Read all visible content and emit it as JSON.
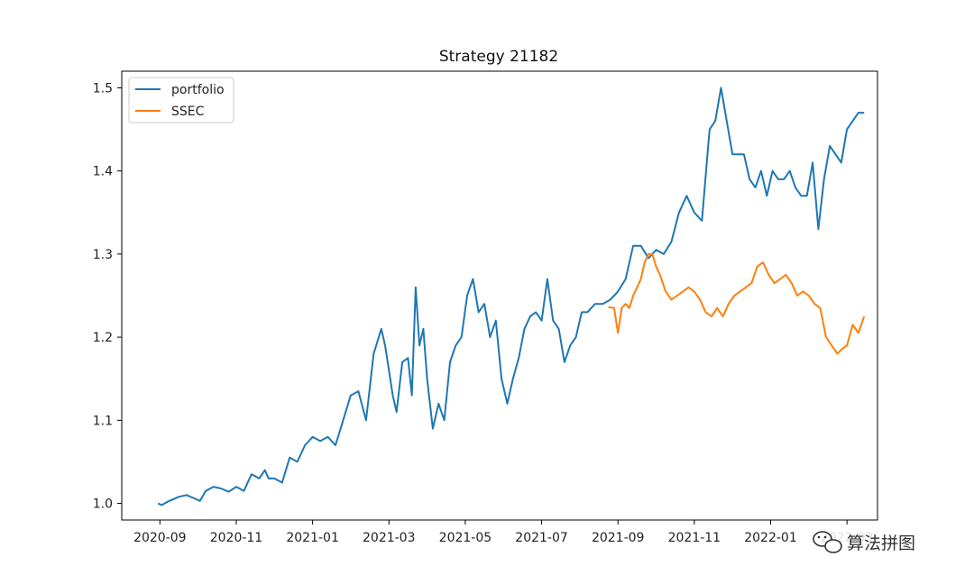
{
  "chart_data": {
    "type": "line",
    "title": "Strategy 21182",
    "xlabel": "",
    "ylabel": "",
    "ylim": [
      0.98,
      1.52
    ],
    "grid": false,
    "legend_position": "top-left",
    "x_ticks": [
      "2020-09",
      "2020-11",
      "2021-01",
      "2021-03",
      "2021-05",
      "2021-07",
      "2021-09",
      "2021-11",
      "2022-01",
      "2022-03"
    ],
    "x_tick_months": [
      1,
      3,
      5,
      7,
      9,
      11,
      13,
      15,
      17,
      19
    ],
    "xlim_months": [
      0.0,
      19.8
    ],
    "y_ticks": [
      "1.0",
      "1.1",
      "1.2",
      "1.3",
      "1.4",
      "1.5"
    ],
    "y_tick_values": [
      1.0,
      1.1,
      1.2,
      1.3,
      1.4,
      1.5
    ],
    "series": [
      {
        "name": "portfolio",
        "color": "#1f77b4",
        "x": [
          0.95,
          1.05,
          1.2,
          1.35,
          1.5,
          1.7,
          1.9,
          2.05,
          2.2,
          2.4,
          2.6,
          2.8,
          3.0,
          3.2,
          3.4,
          3.6,
          3.75,
          3.85,
          4.0,
          4.2,
          4.4,
          4.6,
          4.8,
          5.0,
          5.2,
          5.4,
          5.6,
          5.8,
          6.0,
          6.2,
          6.4,
          6.6,
          6.8,
          6.9,
          7.0,
          7.1,
          7.2,
          7.35,
          7.5,
          7.6,
          7.7,
          7.8,
          7.9,
          8.0,
          8.15,
          8.3,
          8.45,
          8.6,
          8.75,
          8.9,
          9.05,
          9.2,
          9.35,
          9.5,
          9.65,
          9.8,
          9.95,
          10.1,
          10.25,
          10.4,
          10.55,
          10.7,
          10.85,
          11.0,
          11.15,
          11.3,
          11.45,
          11.6,
          11.75,
          11.9,
          12.05,
          12.2,
          12.4,
          12.6,
          12.8,
          13.0,
          13.2,
          13.4,
          13.6,
          13.8,
          14.0,
          14.2,
          14.4,
          14.6,
          14.8,
          15.0,
          15.2,
          15.4,
          15.55,
          15.7,
          15.85,
          16.0,
          16.15,
          16.3,
          16.45,
          16.6,
          16.75,
          16.9,
          17.05,
          17.2,
          17.35,
          17.5,
          17.65,
          17.8,
          17.95,
          18.1,
          18.25,
          18.4,
          18.55,
          18.7,
          18.85,
          19.0,
          19.15,
          19.3,
          19.45
        ],
        "values": [
          1.0,
          0.998,
          1.002,
          1.005,
          1.008,
          1.01,
          1.006,
          1.003,
          1.015,
          1.02,
          1.018,
          1.014,
          1.02,
          1.015,
          1.035,
          1.03,
          1.04,
          1.03,
          1.03,
          1.025,
          1.055,
          1.05,
          1.07,
          1.08,
          1.075,
          1.08,
          1.07,
          1.1,
          1.13,
          1.135,
          1.1,
          1.18,
          1.21,
          1.19,
          1.16,
          1.13,
          1.11,
          1.17,
          1.175,
          1.13,
          1.26,
          1.19,
          1.21,
          1.15,
          1.09,
          1.12,
          1.1,
          1.17,
          1.19,
          1.2,
          1.25,
          1.27,
          1.23,
          1.24,
          1.2,
          1.22,
          1.15,
          1.12,
          1.15,
          1.175,
          1.21,
          1.225,
          1.23,
          1.22,
          1.27,
          1.22,
          1.21,
          1.17,
          1.19,
          1.2,
          1.23,
          1.23,
          1.24,
          1.24,
          1.245,
          1.255,
          1.27,
          1.31,
          1.31,
          1.295,
          1.305,
          1.3,
          1.315,
          1.35,
          1.37,
          1.35,
          1.34,
          1.45,
          1.46,
          1.5,
          1.46,
          1.42,
          1.42,
          1.42,
          1.39,
          1.38,
          1.4,
          1.37,
          1.4,
          1.39,
          1.39,
          1.4,
          1.38,
          1.37,
          1.37,
          1.41,
          1.33,
          1.39,
          1.43,
          1.42,
          1.41,
          1.45,
          1.46,
          1.47,
          1.47
        ],
        "y_offsets": [
          0
        ]
      },
      {
        "name": "SSEC",
        "color": "#ff7f0e",
        "x": [
          12.75,
          12.9,
          13.0,
          13.1,
          13.2,
          13.3,
          13.4,
          13.5,
          13.6,
          13.7,
          13.8,
          13.9,
          14.0,
          14.1,
          14.25,
          14.4,
          14.55,
          14.7,
          14.85,
          15.0,
          15.15,
          15.3,
          15.45,
          15.6,
          15.75,
          15.9,
          16.05,
          16.2,
          16.35,
          16.5,
          16.65,
          16.8,
          16.95,
          17.1,
          17.25,
          17.4,
          17.55,
          17.7,
          17.85,
          18.0,
          18.15,
          18.3,
          18.45,
          18.6,
          18.75,
          18.85,
          19.0,
          19.15,
          19.3,
          19.45
        ],
        "values": [
          1.236,
          1.235,
          1.205,
          1.235,
          1.24,
          1.235,
          1.25,
          1.26,
          1.27,
          1.29,
          1.3,
          1.3,
          1.285,
          1.275,
          1.255,
          1.245,
          1.25,
          1.255,
          1.26,
          1.255,
          1.245,
          1.23,
          1.225,
          1.235,
          1.225,
          1.24,
          1.25,
          1.255,
          1.26,
          1.265,
          1.285,
          1.29,
          1.275,
          1.265,
          1.27,
          1.275,
          1.265,
          1.25,
          1.255,
          1.25,
          1.24,
          1.235,
          1.2,
          1.19,
          1.18,
          1.185,
          1.19,
          1.215,
          1.205,
          1.225
        ]
      }
    ]
  },
  "watermark": {
    "text": "算法拼图",
    "icon": "wechat-icon"
  }
}
